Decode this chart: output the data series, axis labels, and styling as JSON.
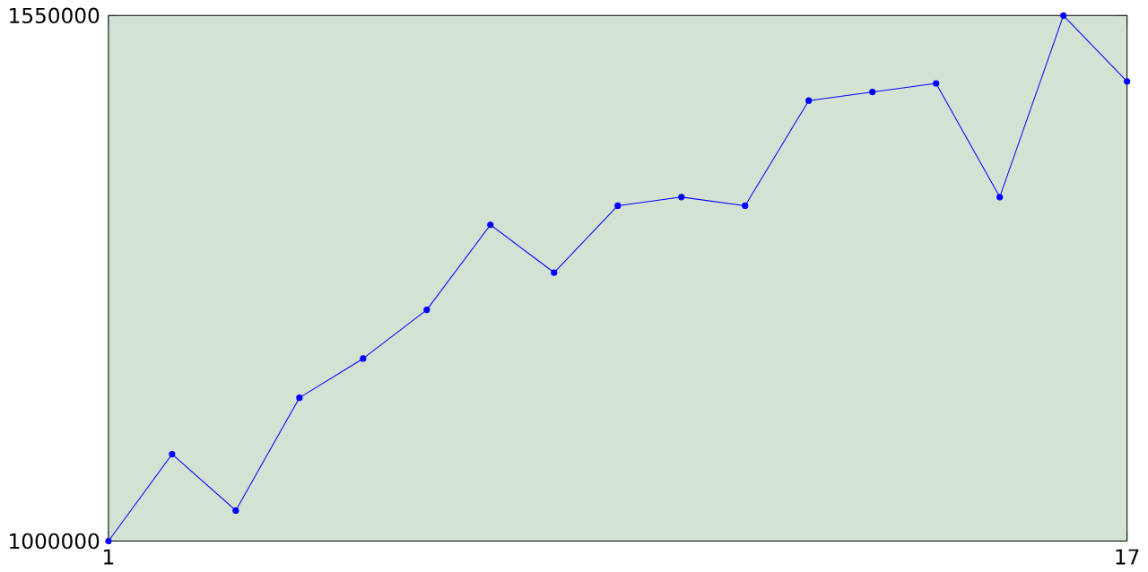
{
  "chart_data": {
    "type": "line",
    "x": [
      1,
      2,
      3,
      4,
      5,
      6,
      7,
      8,
      9,
      10,
      11,
      12,
      13,
      14,
      15,
      16,
      17
    ],
    "series": [
      {
        "color": "#0000ff",
        "values": [
          1000000,
          1091000,
          1032000,
          1150000,
          1191000,
          1242000,
          1331000,
          1281000,
          1351000,
          1360000,
          1351000,
          1461000,
          1470000,
          1479000,
          1360000,
          1550000,
          1481000
        ]
      }
    ],
    "xlim": [
      1,
      17
    ],
    "ylim": [
      1000000,
      1550000
    ],
    "xticks": [
      1,
      17
    ],
    "yticks": [
      1000000,
      1550000
    ],
    "marker": "circle",
    "line_style": "solid",
    "grid": false
  }
}
